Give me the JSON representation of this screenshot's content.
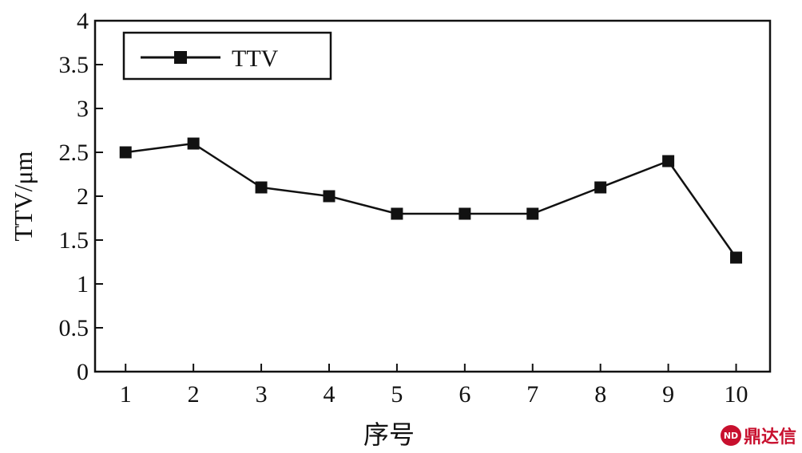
{
  "chart_data": {
    "type": "line",
    "x": [
      1,
      2,
      3,
      4,
      5,
      6,
      7,
      8,
      9,
      10
    ],
    "x_tick_labels": [
      "1",
      "2",
      "3",
      "4",
      "5",
      "6",
      "7",
      "8",
      "9",
      "10"
    ],
    "series": [
      {
        "name": "TTV",
        "values": [
          2.5,
          2.6,
          2.1,
          2.0,
          1.8,
          1.8,
          1.8,
          2.1,
          2.4,
          1.3
        ],
        "marker": "square",
        "color": "#111111"
      }
    ],
    "xlabel": "序号",
    "ylabel": "TTV/μm",
    "xlim": [
      0.55,
      10.5
    ],
    "ylim": [
      0,
      4
    ],
    "y_ticks": [
      0,
      0.5,
      1,
      1.5,
      2,
      2.5,
      3,
      3.5,
      4
    ],
    "y_tick_labels": [
      "0",
      "0.5",
      "1",
      "1.5",
      "2",
      "2.5",
      "3",
      "3.5",
      "4"
    ],
    "grid": false,
    "legend_position": "top-left"
  },
  "watermark": {
    "logo": "ND",
    "text": "鼎达信"
  }
}
